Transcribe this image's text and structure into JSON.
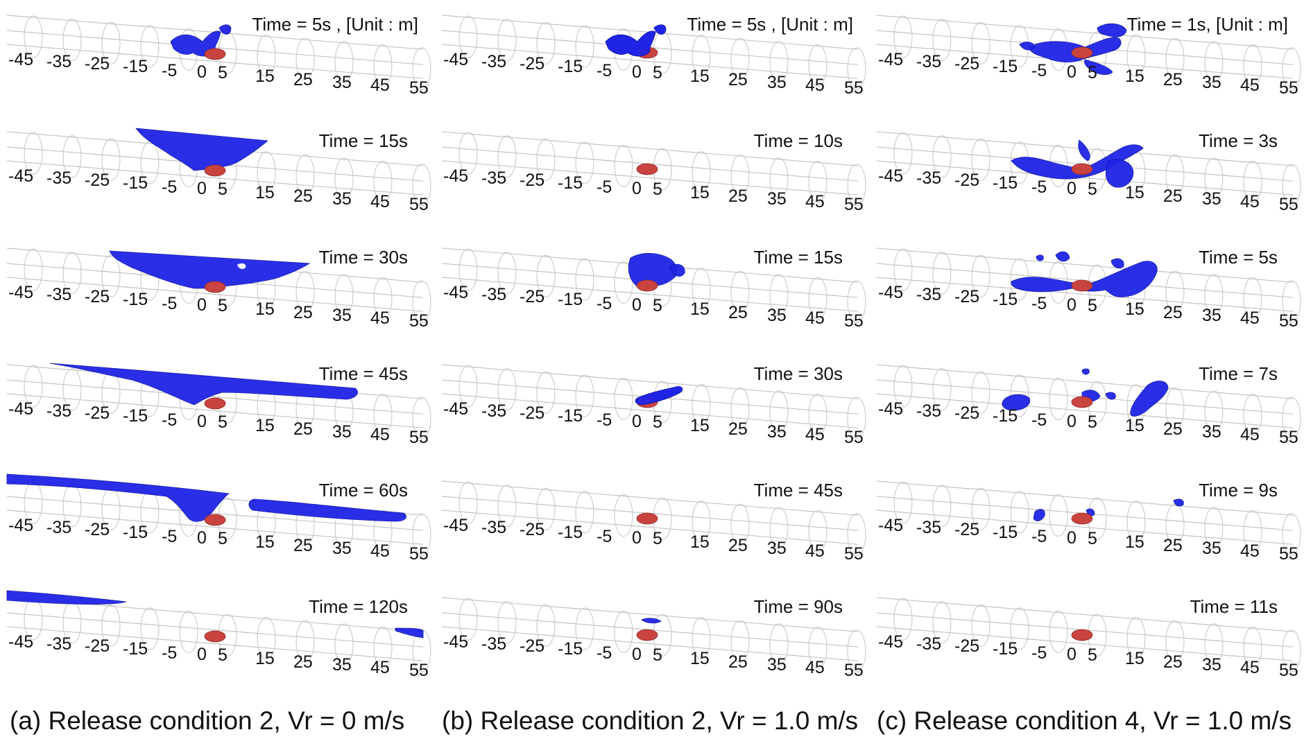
{
  "unit_note": "[Unit : m]",
  "tick_labels": [
    "-45",
    "-35",
    "-25",
    "-15",
    "-5",
    "0",
    "5",
    "15",
    "25",
    "35",
    "45",
    "55"
  ],
  "colors": {
    "gas_cloud": "#1f24e6",
    "gas_edge": "#0d12a8",
    "source": "#c9433f",
    "pipe": "#c4c4c4",
    "text": "#111111"
  },
  "columns": [
    {
      "caption": "(a) Release condition 2, Vr = 0 m/s",
      "frames": [
        {
          "time_label": "Time = 5s , [Unit : m]",
          "plume": "small"
        },
        {
          "time_label": "Time = 15s",
          "plume": "sheet-15"
        },
        {
          "time_label": "Time = 30s",
          "plume": "sheet-30"
        },
        {
          "time_label": "Time = 45s",
          "plume": "sheet-45"
        },
        {
          "time_label": "Time = 60s",
          "plume": "sheet-60"
        },
        {
          "time_label": "Time = 120s",
          "plume": "sheet-120"
        }
      ]
    },
    {
      "caption": "(b) Release condition 2, Vr = 1.0 m/s",
      "frames": [
        {
          "time_label": "Time = 5s , [Unit : m]",
          "plume": "small"
        },
        {
          "time_label": "Time = 10s",
          "plume": "small"
        },
        {
          "time_label": "Time = 15s",
          "plume": "blob"
        },
        {
          "time_label": "Time = 30s",
          "plume": "wisp"
        },
        {
          "time_label": "Time = 45s",
          "plume": "wisp"
        },
        {
          "time_label": "Time = 90s",
          "plume": "tiny"
        }
      ]
    },
    {
      "caption": "(c) Release condition 4, Vr = 1.0 m/s",
      "frames": [
        {
          "time_label": "Time = 1s, [Unit : m]",
          "plume": "jets-1"
        },
        {
          "time_label": "Time = 3s",
          "plume": "jets-3"
        },
        {
          "time_label": "Time = 5s",
          "plume": "jets-5"
        },
        {
          "time_label": "Time = 7s",
          "plume": "jets-7"
        },
        {
          "time_label": "Time = 9s",
          "plume": "jets-9"
        },
        {
          "time_label": "Time = 11s",
          "plume": "none"
        }
      ]
    }
  ]
}
